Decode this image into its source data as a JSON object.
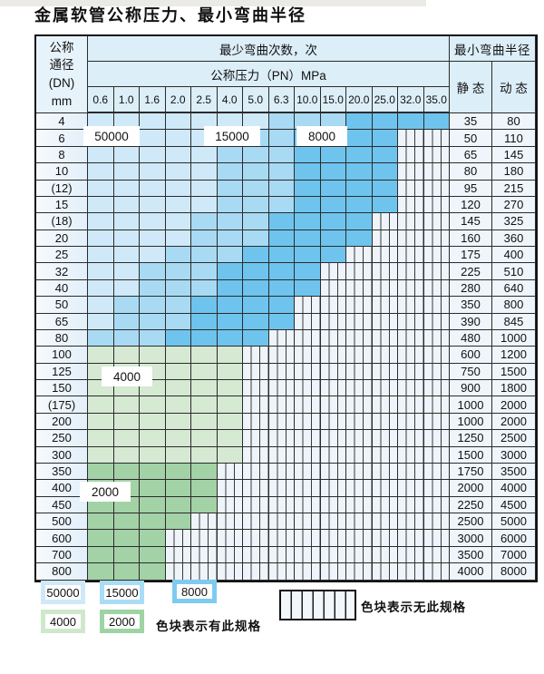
{
  "title": "金属软管公称压力、最小弯曲半径",
  "table": {
    "dn_header_lines": [
      "公称",
      "通径",
      "(DN)",
      "mm"
    ],
    "cycles_header": "最少弯曲次数，次",
    "pressure_header": "公称压力（PN）MPa",
    "radius_header": "最小弯曲半径",
    "static_header": "静 态",
    "dynamic_header": "动 态",
    "pn_values": [
      "0.6",
      "1.0",
      "1.6",
      "2.0",
      "2.5",
      "4.0",
      "5.0",
      "6.3",
      "10.0",
      "15.0",
      "20.0",
      "25.0",
      "32.0",
      "35.0"
    ],
    "rows": [
      {
        "dn": "4",
        "max_pn": "35.0",
        "band": "blue",
        "static": "35",
        "dynamic": "80"
      },
      {
        "dn": "6",
        "max_pn": "25.0",
        "band": "blue",
        "static": "50",
        "dynamic": "110"
      },
      {
        "dn": "8",
        "max_pn": "25.0",
        "band": "blue",
        "static": "65",
        "dynamic": "145"
      },
      {
        "dn": "10",
        "max_pn": "25.0",
        "band": "blue",
        "static": "80",
        "dynamic": "180"
      },
      {
        "dn": "(12)",
        "max_pn": "25.0",
        "band": "blue",
        "static": "95",
        "dynamic": "215"
      },
      {
        "dn": "15",
        "max_pn": "25.0",
        "band": "blue",
        "static": "120",
        "dynamic": "270"
      },
      {
        "dn": "(18)",
        "max_pn": "20.0",
        "band": "blue",
        "static": "145",
        "dynamic": "325"
      },
      {
        "dn": "20",
        "max_pn": "20.0",
        "band": "blue",
        "static": "160",
        "dynamic": "360"
      },
      {
        "dn": "25",
        "max_pn": "15.0",
        "band": "blue",
        "static": "175",
        "dynamic": "400"
      },
      {
        "dn": "32",
        "max_pn": "10.0",
        "band": "blue",
        "static": "225",
        "dynamic": "510"
      },
      {
        "dn": "40",
        "max_pn": "10.0",
        "band": "blue",
        "static": "280",
        "dynamic": "640"
      },
      {
        "dn": "50",
        "max_pn": "6.3",
        "band": "blue",
        "static": "350",
        "dynamic": "800"
      },
      {
        "dn": "65",
        "max_pn": "6.3",
        "band": "blue",
        "static": "390",
        "dynamic": "845"
      },
      {
        "dn": "80",
        "max_pn": "5.0",
        "band": "blue",
        "static": "480",
        "dynamic": "1000"
      },
      {
        "dn": "100",
        "max_pn": "4.0",
        "band": "4000",
        "static": "600",
        "dynamic": "1200"
      },
      {
        "dn": "125",
        "max_pn": "4.0",
        "band": "4000",
        "static": "750",
        "dynamic": "1500"
      },
      {
        "dn": "150",
        "max_pn": "4.0",
        "band": "4000",
        "static": "900",
        "dynamic": "1800"
      },
      {
        "dn": "(175)",
        "max_pn": "4.0",
        "band": "4000",
        "static": "1000",
        "dynamic": "2000"
      },
      {
        "dn": "200",
        "max_pn": "4.0",
        "band": "4000",
        "static": "1000",
        "dynamic": "2000"
      },
      {
        "dn": "250",
        "max_pn": "4.0",
        "band": "4000",
        "static": "1250",
        "dynamic": "2500"
      },
      {
        "dn": "300",
        "max_pn": "4.0",
        "band": "4000",
        "static": "1500",
        "dynamic": "3000"
      },
      {
        "dn": "350",
        "max_pn": "2.5",
        "band": "2000",
        "static": "1750",
        "dynamic": "3500"
      },
      {
        "dn": "400",
        "max_pn": "2.5",
        "band": "2000",
        "static": "2000",
        "dynamic": "4000"
      },
      {
        "dn": "450",
        "max_pn": "2.5",
        "band": "2000",
        "static": "2250",
        "dynamic": "4500"
      },
      {
        "dn": "500",
        "max_pn": "2.0",
        "band": "2000",
        "static": "2500",
        "dynamic": "5000"
      },
      {
        "dn": "600",
        "max_pn": "1.6",
        "band": "2000",
        "static": "3000",
        "dynamic": "6000"
      },
      {
        "dn": "700",
        "max_pn": "1.6",
        "band": "2000",
        "static": "3500",
        "dynamic": "7000"
      },
      {
        "dn": "800",
        "max_pn": "1.6",
        "band": "2000",
        "static": "4000",
        "dynamic": "8000"
      }
    ]
  },
  "zone_labels": {
    "z50000": "50000",
    "z15000": "15000",
    "z8000": "8000",
    "z4000": "4000",
    "z2000": "2000"
  },
  "legend": {
    "swatches": [
      {
        "label": "50000",
        "color": "#cfe9f8"
      },
      {
        "label": "15000",
        "color": "#a9dcf5"
      },
      {
        "label": "8000",
        "color": "#7ecbf0"
      },
      {
        "label": "4000",
        "color": "#cfe8cc"
      },
      {
        "label": "2000",
        "color": "#9ed4a4"
      }
    ],
    "available_note": "色块表示有此规格",
    "unavailable_note": "色块表示无此规格"
  },
  "colors": {
    "blue_light": "#cfe9f9",
    "blue_mid": "#a9daf4",
    "blue_dark": "#6fc4ee",
    "green_light": "#d6e9d3",
    "green_dark": "#a3d2a6",
    "striped_bg": "#eef4fa",
    "stripe_line": "#3a3a3a"
  }
}
